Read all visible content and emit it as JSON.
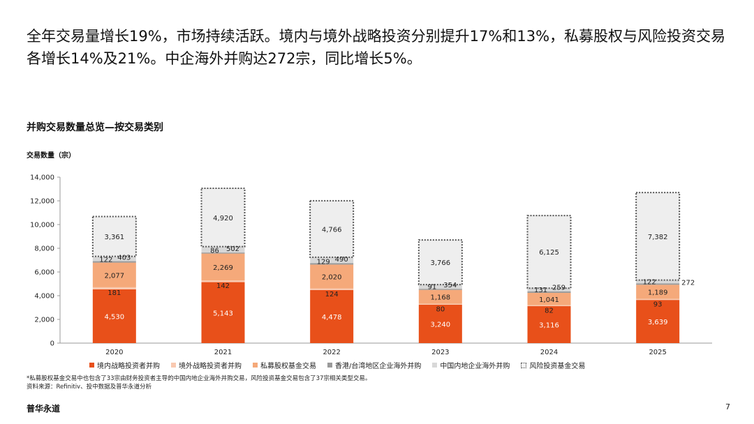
{
  "headline": "全年交易量增长19%，市场持续活跃。境内与境外战略投资分别提升17%和13%，私募股权与风险投资交易各增长14%及21%。中企海外并购达272宗，同比增长5%。",
  "footnote": {
    "line1": "*私募股权基金交易中也包含了33宗由财务投资者主导的中国内地企业海外并购交易，风险投资基金交易包含了37宗相关类型交易。",
    "line2": "资料来源：Refinitiv、投中数据及普华永道分析"
  },
  "brand": "普华永道",
  "page_number": "7",
  "colors": {
    "domestic": "#e8501a",
    "overseas": "#f9c9b0",
    "pe": "#f5a97a",
    "hk_tw": "#9a9a9a",
    "mainland": "#d8d8d8",
    "vc": "#eeeeee"
  },
  "chart_data": {
    "type": "bar",
    "stacked": true,
    "title": "并购交易数量总览—按交易类别",
    "ylabel": "交易数量（宗）",
    "xlabel": "",
    "ylim": [
      0,
      14000
    ],
    "yticks": [
      "0",
      "2,000",
      "4,000",
      "6,000",
      "8,000",
      "10,000",
      "12,000",
      "14,000"
    ],
    "grid": false,
    "legend_position": "bottom",
    "categories": [
      "2020",
      "2021",
      "2022",
      "2023",
      "2024",
      "2025"
    ],
    "series": [
      {
        "name": "境内战略投资者并购",
        "key": "domestic",
        "values": [
          4530,
          5143,
          4478,
          3240,
          3116,
          3639
        ],
        "labels": [
          "4,530",
          "5,143",
          "4,478",
          "3,240",
          "3,116",
          "3,639"
        ]
      },
      {
        "name": "境外战略投资者并购",
        "key": "overseas",
        "values": [
          181,
          142,
          124,
          80,
          82,
          93
        ],
        "labels": [
          "181",
          "142",
          "124",
          "80",
          "82",
          "93"
        ]
      },
      {
        "name": "私募股权基金交易",
        "key": "pe",
        "values": [
          2077,
          2269,
          2020,
          1168,
          1041,
          1189
        ],
        "labels": [
          "2,077",
          "2,269",
          "2,020",
          "1,168",
          "1,041",
          "1,189"
        ]
      },
      {
        "name": "香港/台湾地区企业海外并购",
        "key": "hk_tw",
        "values": [
          122,
          86,
          129,
          91,
          131,
          122
        ],
        "labels": [
          "122",
          "86",
          "129",
          "91",
          "131",
          "122"
        ]
      },
      {
        "name": "中国内地企业海外并购",
        "key": "mainland",
        "values": [
          403,
          502,
          490,
          354,
          259,
          272
        ],
        "labels": [
          "403",
          "502",
          "490",
          "354",
          "259",
          "272"
        ]
      },
      {
        "name": "风险投资基金交易",
        "key": "vc",
        "values": [
          3361,
          4920,
          4766,
          3766,
          6125,
          7382
        ],
        "labels": [
          "3,361",
          "4,920",
          "4,766",
          "3,766",
          "6,125",
          "7,382"
        ]
      }
    ]
  }
}
